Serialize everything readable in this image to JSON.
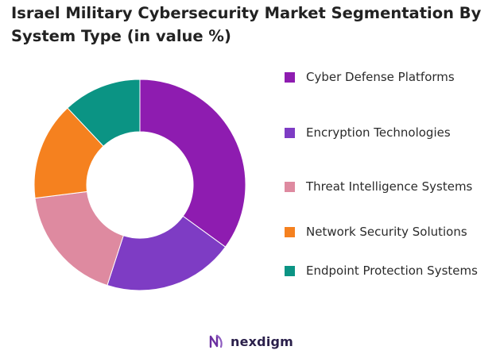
{
  "title": "Israel Military Cybersecurity Market Segmentation By System Type (in value %)",
  "chart_data": {
    "type": "pie",
    "donut": true,
    "title": "Israel Military Cybersecurity Market Segmentation By System Type (in value %)",
    "legend_position": "right",
    "categories": [
      "Cyber Defense Platforms",
      "Encryption Technologies",
      "Threat Intelligence Systems",
      "Network Security Solutions",
      "Endpoint Protection Systems"
    ],
    "values": [
      35,
      20,
      18,
      15,
      12
    ],
    "colors": [
      "#8e1cb0",
      "#7e3cc4",
      "#de8aa0",
      "#f5811f",
      "#0b9484"
    ]
  },
  "brand": {
    "name": "nexdigm",
    "logo_icon": "nexdigm-logo-icon",
    "color": "#6b2fa0"
  }
}
